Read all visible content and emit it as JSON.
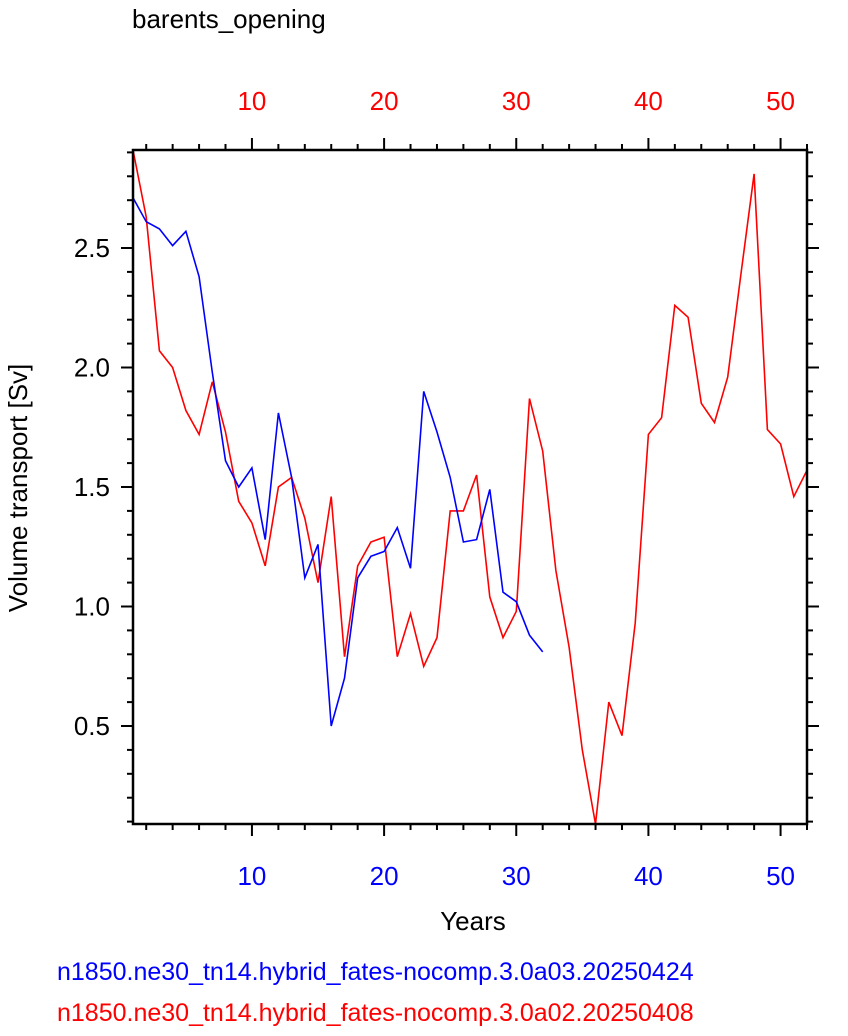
{
  "chart_data": {
    "type": "line",
    "title": "barents_opening",
    "xlabel": "Years",
    "ylabel": "Volume transport [Sv]",
    "xlim": [
      1,
      52
    ],
    "ylim": [
      0.09,
      2.91
    ],
    "x_ticks": [
      10,
      20,
      30,
      40,
      50
    ],
    "y_ticks": [
      0.5,
      1.0,
      1.5,
      2.0,
      2.5
    ],
    "y_tick_labels": [
      "0.5",
      "1.0",
      "1.5",
      "2.0",
      "2.5"
    ],
    "grid": false,
    "bottom_axis_color": "#0000ff",
    "top_axis_color": "#ff0000",
    "series": [
      {
        "name": "n1850.ne30_tn14.hybrid_fates-nocomp.3.0a03.20250424",
        "color": "#0000ff",
        "x": [
          1,
          2,
          3,
          4,
          5,
          6,
          7,
          8,
          9,
          10,
          11,
          12,
          13,
          14,
          15,
          16,
          17,
          18,
          19,
          20,
          21,
          22,
          23,
          24,
          25,
          26,
          27,
          28,
          29,
          30,
          31,
          32
        ],
        "y": [
          2.71,
          2.61,
          2.58,
          2.51,
          2.57,
          2.38,
          1.98,
          1.61,
          1.5,
          1.58,
          1.28,
          1.81,
          1.54,
          1.12,
          1.26,
          0.5,
          0.7,
          1.12,
          1.21,
          1.23,
          1.33,
          1.16,
          1.9,
          1.73,
          1.54,
          1.27,
          1.28,
          1.49,
          1.06,
          1.02,
          0.88,
          0.81
        ]
      },
      {
        "name": "n1850.ne30_tn14.hybrid_fates-nocomp.3.0a02.20250408",
        "color": "#ff0000",
        "x": [
          1,
          2,
          3,
          4,
          5,
          6,
          7,
          8,
          9,
          10,
          11,
          12,
          13,
          14,
          15,
          16,
          17,
          18,
          19,
          20,
          21,
          22,
          23,
          24,
          25,
          26,
          27,
          28,
          29,
          30,
          31,
          32,
          33,
          34,
          35,
          36,
          37,
          38,
          39,
          40,
          41,
          42,
          43,
          44,
          45,
          46,
          47,
          48,
          49,
          50,
          51,
          52
        ],
        "y": [
          2.91,
          2.63,
          2.07,
          2.0,
          1.82,
          1.72,
          1.94,
          1.73,
          1.44,
          1.35,
          1.17,
          1.5,
          1.54,
          1.37,
          1.1,
          1.46,
          0.79,
          1.17,
          1.27,
          1.29,
          0.79,
          0.97,
          0.75,
          0.87,
          1.4,
          1.4,
          1.55,
          1.04,
          0.87,
          0.98,
          1.87,
          1.65,
          1.15,
          0.83,
          0.4,
          0.09,
          0.6,
          0.46,
          0.93,
          1.72,
          1.79,
          2.26,
          2.21,
          1.85,
          1.77,
          1.96,
          2.39,
          2.81,
          1.74,
          1.68,
          1.46,
          1.57
        ]
      }
    ]
  }
}
